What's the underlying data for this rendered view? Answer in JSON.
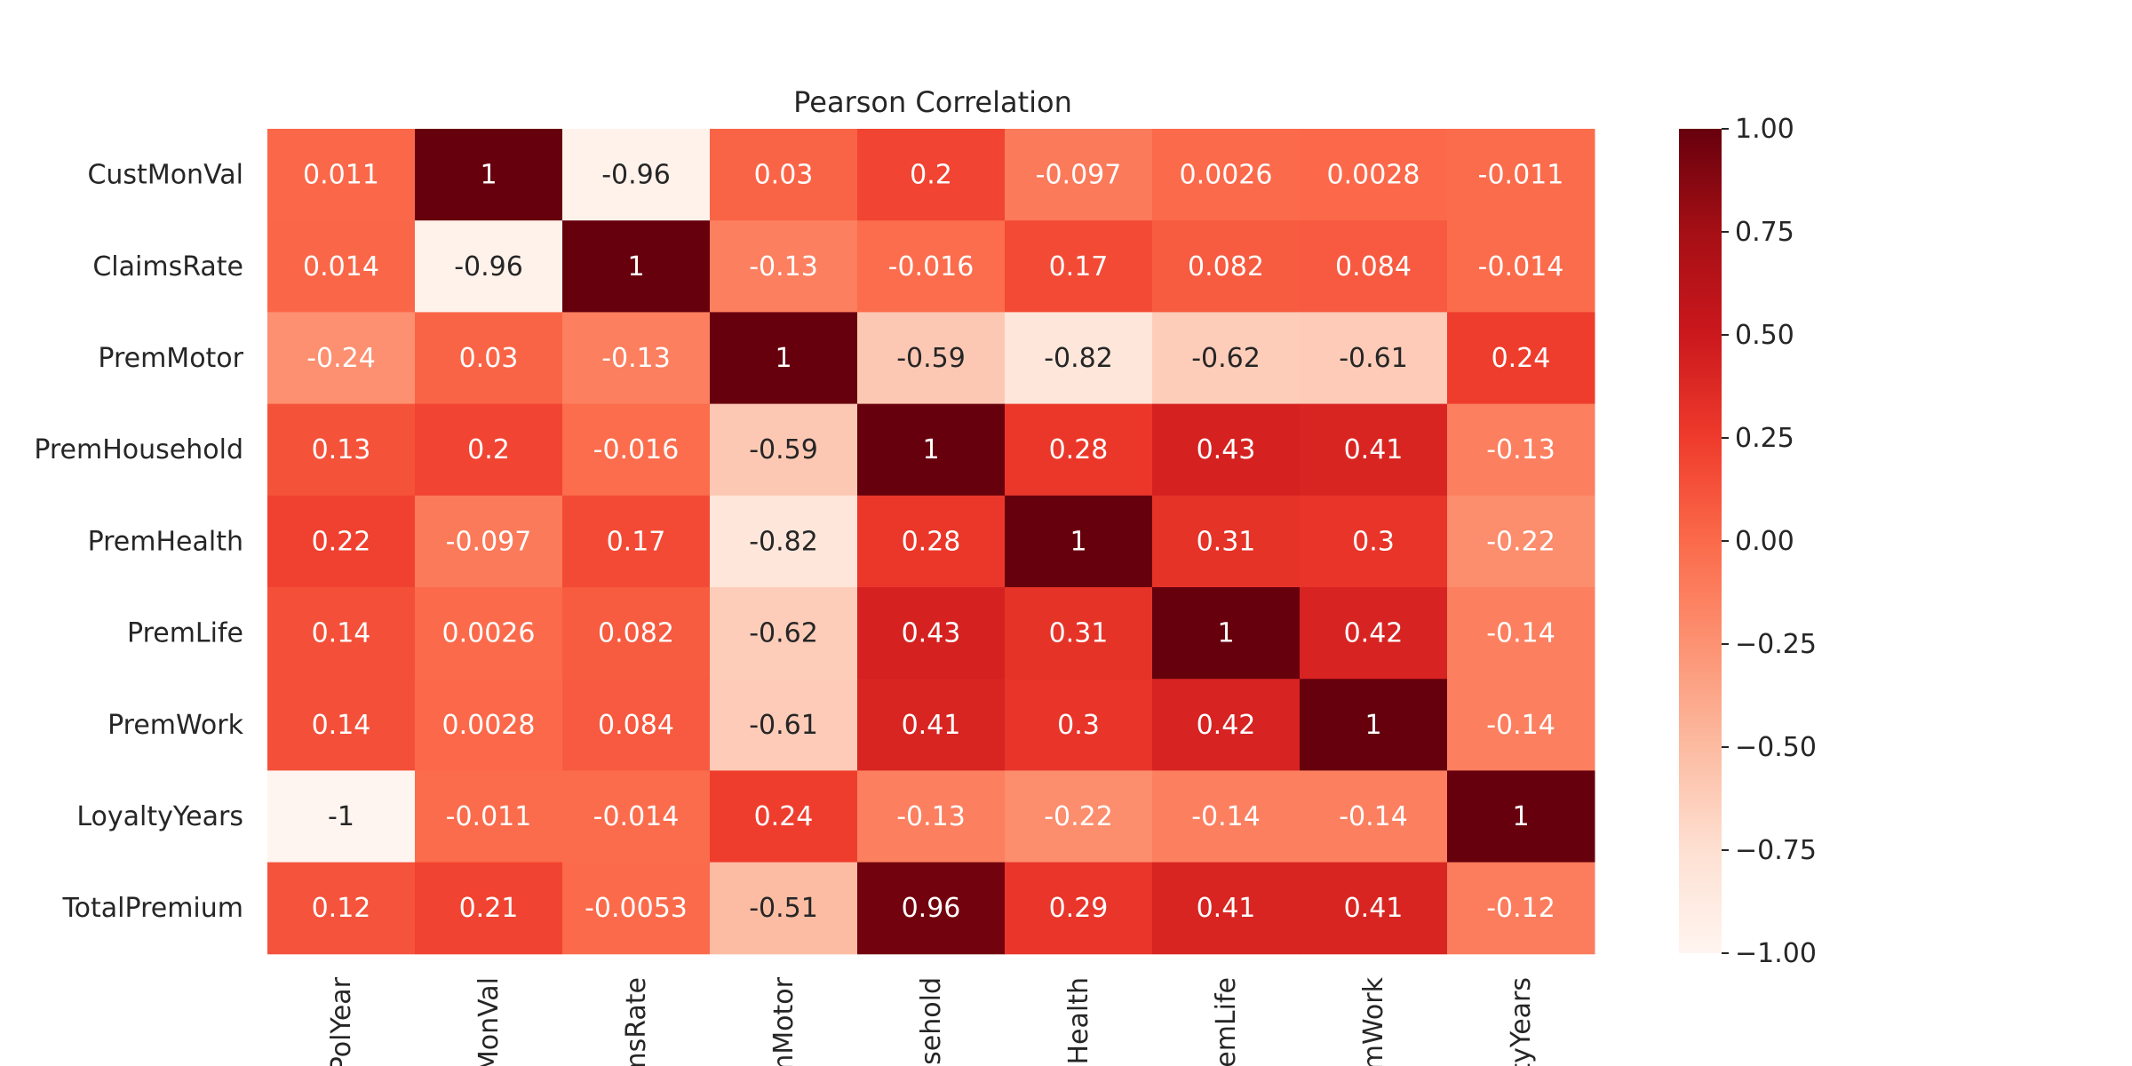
{
  "chart_data": {
    "type": "heatmap",
    "title": "Pearson Correlation",
    "rows": [
      "CustMonVal",
      "ClaimsRate",
      "PremMotor",
      "PremHousehold",
      "PremHealth",
      "PremLife",
      "PremWork",
      "LoyaltyYears",
      "TotalPremium"
    ],
    "columns": [
      "PolYear",
      "MonVal",
      "imsRate",
      "mMotor",
      "usehold",
      "nHealth",
      "remLife",
      "emWork",
      "ltyYears"
    ],
    "values": [
      [
        0.011,
        1,
        -0.96,
        0.03,
        0.2,
        -0.097,
        0.0026,
        0.0028,
        -0.011
      ],
      [
        0.014,
        -0.96,
        1,
        -0.13,
        -0.016,
        0.17,
        0.082,
        0.084,
        -0.014
      ],
      [
        -0.24,
        0.03,
        -0.13,
        1,
        -0.59,
        -0.82,
        -0.62,
        -0.61,
        0.24
      ],
      [
        0.13,
        0.2,
        -0.016,
        -0.59,
        1,
        0.28,
        0.43,
        0.41,
        -0.13
      ],
      [
        0.22,
        -0.097,
        0.17,
        -0.82,
        0.28,
        1,
        0.31,
        0.3,
        -0.22
      ],
      [
        0.14,
        0.0026,
        0.082,
        -0.62,
        0.43,
        0.31,
        1,
        0.42,
        -0.14
      ],
      [
        0.14,
        0.0028,
        0.084,
        -0.61,
        0.41,
        0.3,
        0.42,
        1,
        -0.14
      ],
      [
        -1,
        -0.011,
        -0.014,
        0.24,
        -0.13,
        -0.22,
        -0.14,
        -0.14,
        1
      ],
      [
        0.12,
        0.21,
        -0.0053,
        -0.51,
        0.96,
        0.29,
        0.41,
        0.41,
        -0.12
      ]
    ],
    "colorbar": {
      "range": [
        -1,
        1
      ],
      "ticks": [
        "1.00",
        "0.75",
        "0.50",
        "0.25",
        "0.00",
        "−0.25",
        "−0.50",
        "−0.75",
        "−1.00"
      ],
      "colormap": "Reds"
    }
  }
}
